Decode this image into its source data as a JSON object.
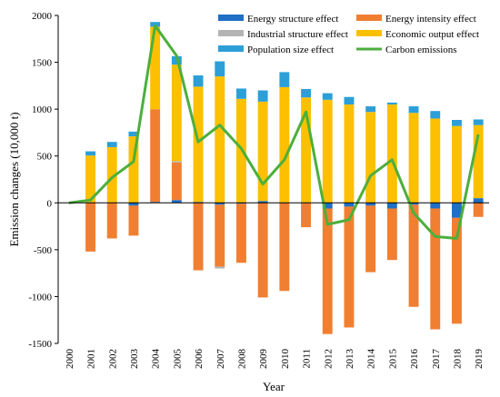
{
  "chart_data": {
    "type": "bar",
    "xlabel": "Year",
    "ylabel": "Emission changes (10,000 t)",
    "ylim": [
      -1500,
      2000
    ],
    "yticks": [
      -1500,
      -1000,
      -500,
      0,
      500,
      1000,
      1500,
      2000
    ],
    "grid": false,
    "legend_position": "top-right",
    "categories": [
      "2000",
      "2001",
      "2002",
      "2003",
      "2004",
      "2005",
      "2006",
      "2007",
      "2008",
      "2009",
      "2010",
      "2011",
      "2012",
      "2013",
      "2014",
      "2015",
      "2016",
      "2017",
      "2018",
      "2019"
    ],
    "series": [
      {
        "name": "Energy structure effect",
        "kind": "stacked-bar",
        "color": "#1f6fc5",
        "values": [
          0,
          5,
          5,
          -30,
          10,
          30,
          10,
          -20,
          -10,
          20,
          5,
          5,
          -60,
          -40,
          -30,
          -60,
          -20,
          -60,
          -160,
          50
        ]
      },
      {
        "name": "Energy intensity effect",
        "kind": "stacked-bar",
        "color": "#f07f32",
        "values": [
          0,
          -520,
          -380,
          -320,
          990,
          400,
          -720,
          -660,
          -630,
          -1010,
          -940,
          -260,
          -1340,
          -1290,
          -710,
          -550,
          -1090,
          -1290,
          -1130,
          -150
        ]
      },
      {
        "name": "Industrial structure effect",
        "kind": "stacked-bar",
        "color": "#b4b4b4",
        "values": [
          0,
          0,
          0,
          0,
          0,
          15,
          0,
          -20,
          0,
          0,
          0,
          0,
          0,
          0,
          0,
          0,
          0,
          0,
          0,
          0
        ]
      },
      {
        "name": "Economic output effect",
        "kind": "stacked-bar",
        "color": "#fcc000",
        "values": [
          0,
          500,
          590,
          710,
          880,
          1030,
          1230,
          1350,
          1110,
          1060,
          1230,
          1120,
          1100,
          1050,
          970,
          1050,
          960,
          900,
          820,
          780
        ]
      },
      {
        "name": "Population size effect",
        "kind": "stacked-bar",
        "color": "#2c9fd8",
        "values": [
          0,
          45,
          55,
          50,
          50,
          90,
          120,
          160,
          110,
          120,
          160,
          90,
          70,
          80,
          60,
          20,
          70,
          80,
          65,
          60
        ]
      },
      {
        "name": "Carbon emissions",
        "kind": "line",
        "color": "#4caf3c",
        "values": [
          0,
          30,
          270,
          440,
          1890,
          1570,
          650,
          830,
          580,
          200,
          460,
          970,
          -230,
          -180,
          290,
          460,
          -110,
          -360,
          -380,
          730
        ]
      }
    ]
  }
}
